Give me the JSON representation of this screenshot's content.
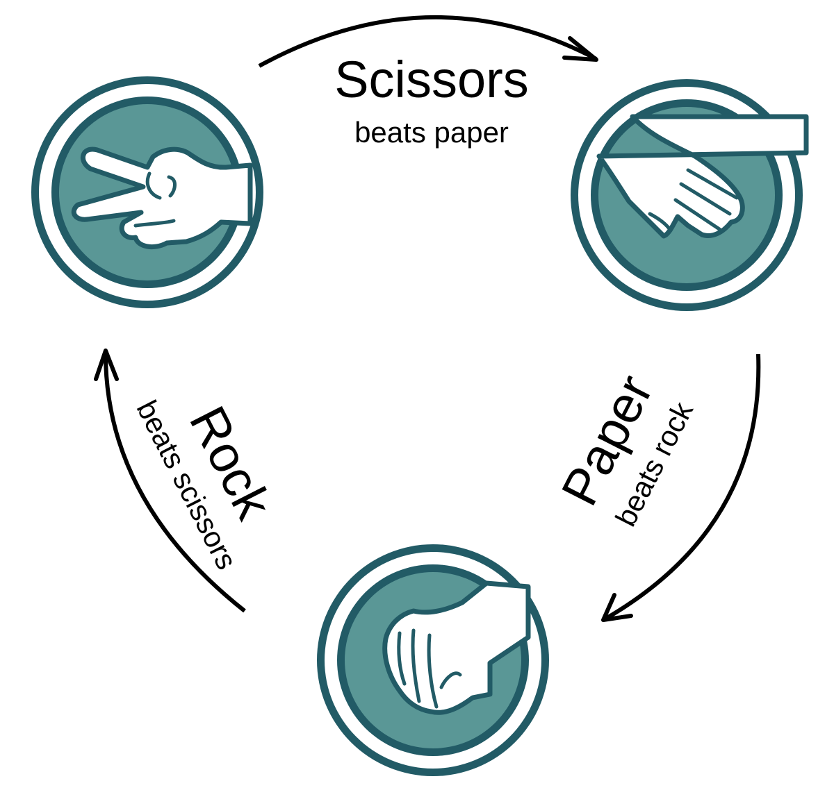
{
  "diagram": {
    "colors": {
      "ring_outer": "#225b66",
      "ring_gap": "#ffffff",
      "disc_fill": "#5a9796",
      "disc_stroke": "#225b66",
      "hand_fill": "#ffffff",
      "hand_stroke": "#225b66",
      "arrow": "#000000",
      "text": "#000000"
    },
    "nodes": [
      {
        "id": "scissors",
        "icon": "scissors-hand-icon"
      },
      {
        "id": "paper",
        "icon": "paper-hand-icon"
      },
      {
        "id": "rock",
        "icon": "rock-hand-icon"
      }
    ],
    "edges": [
      {
        "from": "scissors",
        "to": "paper",
        "title": "Scissors",
        "subtitle": "beats paper"
      },
      {
        "from": "paper",
        "to": "rock",
        "title": "Paper",
        "subtitle": "beats rock"
      },
      {
        "from": "rock",
        "to": "scissors",
        "title": "Rock",
        "subtitle": "beats scissors"
      }
    ]
  }
}
